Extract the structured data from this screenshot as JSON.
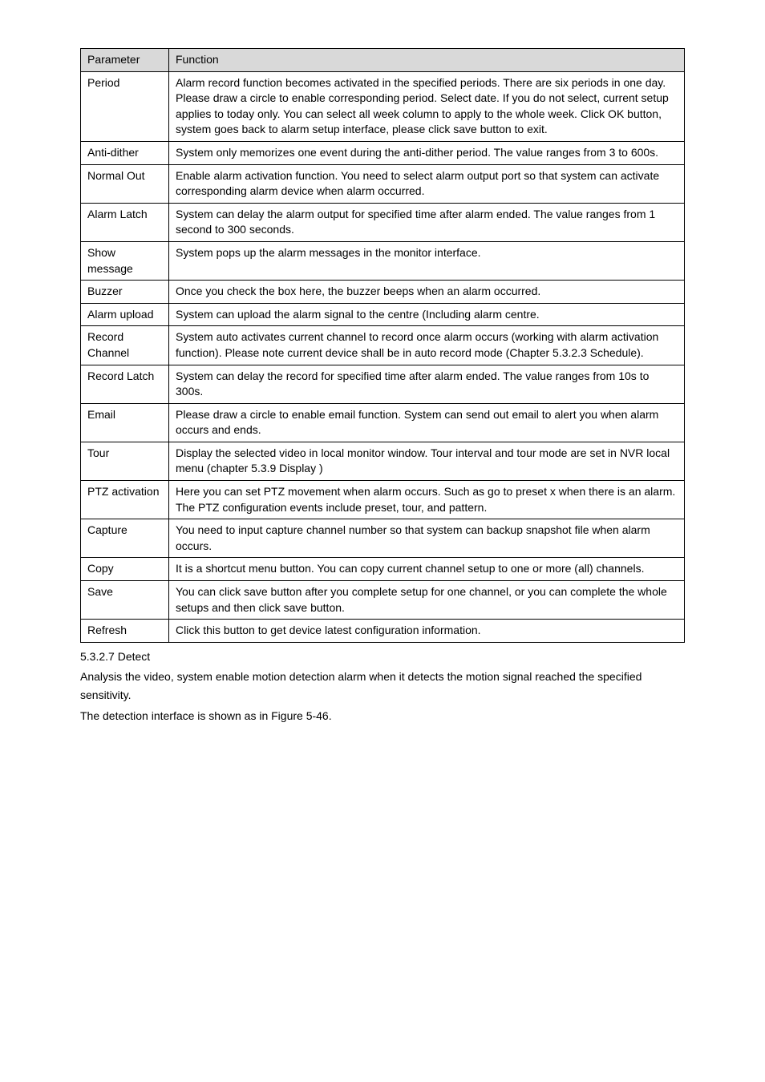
{
  "table": {
    "columns": [
      "Parameter",
      "Function"
    ],
    "rows": [
      {
        "parameter": "Period",
        "function": "Alarm record function becomes activated in the specified periods.\nThere are six periods in one day. Please draw a circle to enable corresponding period.\nSelect date. If you do not select, current setup applies to today only. You can select all week column to apply to the whole week.\nClick OK button, system goes back to alarm setup interface, please click save button to exit."
      },
      {
        "parameter": "Anti-dither",
        "function": "System only memorizes one event during the anti-dither period. The value ranges from 3 to 600s."
      },
      {
        "parameter": "Normal Out",
        "function": "Enable alarm activation function. You need to select alarm output port so that system can activate corresponding alarm device when alarm occurred."
      },
      {
        "parameter": "Alarm Latch",
        "function": "System can delay the alarm output for specified time after alarm ended. The value ranges from 1 second to 300 seconds."
      },
      {
        "parameter": "Show message",
        "function": "System pops up the alarm messages in the monitor interface."
      },
      {
        "parameter": "Buzzer",
        "function": "Once you check the box here, the buzzer beeps when an alarm occurred."
      },
      {
        "parameter": "Alarm upload",
        "function": "System can upload the alarm signal to the centre (Including alarm centre."
      },
      {
        "parameter": "Record Channel",
        "function": "System auto activates current channel to record once alarm occurs (working with alarm activation function). Please note current device shall be in auto record mode (Chapter 5.3.2.3 Schedule)."
      },
      {
        "parameter": "Record Latch",
        "function": "System can delay the record for specified time after alarm ended. The value ranges from 10s to 300s."
      },
      {
        "parameter": "Email",
        "function": "Please draw a circle to enable email function. System can send out email to alert you when alarm occurs and ends."
      },
      {
        "parameter": "Tour",
        "function": "Display the selected video in local monitor window.\nTour interval and tour mode are set in NVR local menu (chapter 5.3.9 Display )"
      },
      {
        "parameter": "PTZ activation",
        "function": "Here you can set PTZ movement when alarm occurs. Such as go to preset x when there is an alarm.\nThe PTZ configuration events include preset, tour, and pattern."
      },
      {
        "parameter": "Capture",
        "function": "You need to input capture channel number so that system can backup snapshot file when alarm occurs."
      },
      {
        "parameter": "Copy",
        "function": "It is a shortcut menu button. You can copy current channel setup to one or more (all) channels."
      },
      {
        "parameter": "Save",
        "function": "You can click save button after you complete setup for one channel, or you can complete the whole setups and then click save button."
      },
      {
        "parameter": "Refresh",
        "function": "Click this button to get device latest configuration information."
      }
    ]
  },
  "section": {
    "heading": "5.3.2.7  Detect",
    "para1": "Analysis the video, system enable motion detection alarm when it detects the motion signal reached the specified sensitivity.",
    "para2": "The detection interface is shown as in Figure 5-46."
  }
}
